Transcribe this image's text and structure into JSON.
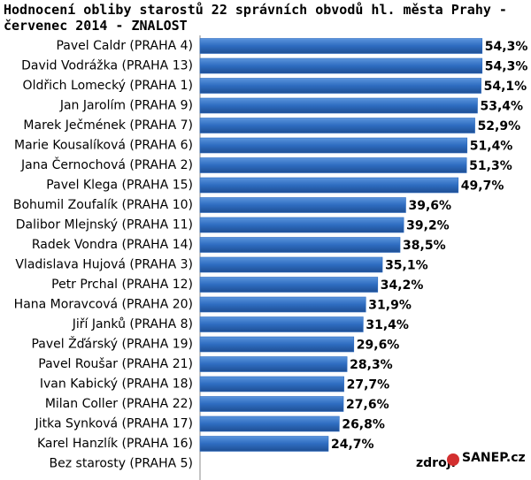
{
  "chart_data": {
    "type": "barh",
    "title": "Hodnocení obliby starostů 22 správních obvodů hl. města Prahy - červenec 2014 - ZNALOST",
    "categories": [
      "Pavel Caldr (PRAHA 4)",
      "David Vodrážka (PRAHA 13)",
      "Oldřich Lomecký  (PRAHA 1)",
      "Jan Jarolím (PRAHA 9)",
      "Marek Ječmének (PRAHA 7)",
      "Marie Kousalíková (PRAHA 6)",
      "Jana Černochová (PRAHA 2)",
      "Pavel Klega (PRAHA 15)",
      "Bohumil Zoufalík (PRAHA 10)",
      "Dalibor Mlejnský (PRAHA 11)",
      "Radek Vondra (PRAHA 14)",
      "Vladislava Hujová (PRAHA 3)",
      "Petr Prchal (PRAHA 12)",
      "Hana Moravcová (PRAHA 20)",
      "Jiří Janků (PRAHA 8)",
      "Pavel Žďárský (PRAHA 19)",
      "Pavel Roušar (PRAHA 21)",
      "Ivan Kabický (PRAHA 18)",
      "Milan Coller (PRAHA 22)",
      "Jitka Synková (PRAHA 17)",
      "Karel Hanzlík (PRAHA 16)",
      "Bez starosty (PRAHA 5)"
    ],
    "values": [
      54.3,
      54.3,
      54.1,
      53.4,
      52.9,
      51.4,
      51.3,
      49.7,
      39.6,
      39.2,
      38.5,
      35.1,
      34.2,
      31.9,
      31.4,
      29.6,
      28.3,
      27.7,
      27.6,
      26.8,
      24.7,
      null
    ],
    "value_labels": [
      "54,3%",
      "54,3%",
      "54,1%",
      "53,4%",
      "52,9%",
      "51,4%",
      "51,3%",
      "49,7%",
      "39,6%",
      "39,2%",
      "38,5%",
      "35,1%",
      "34,2%",
      "31,9%",
      "31,4%",
      "29,6%",
      "28,3%",
      "27,7%",
      "27,6%",
      "26,8%",
      "24,7%",
      null
    ],
    "color": "#2e6cc0",
    "xlim": [
      0,
      62
    ],
    "source_label": "zdroj:",
    "source": "SANEP.cz"
  }
}
